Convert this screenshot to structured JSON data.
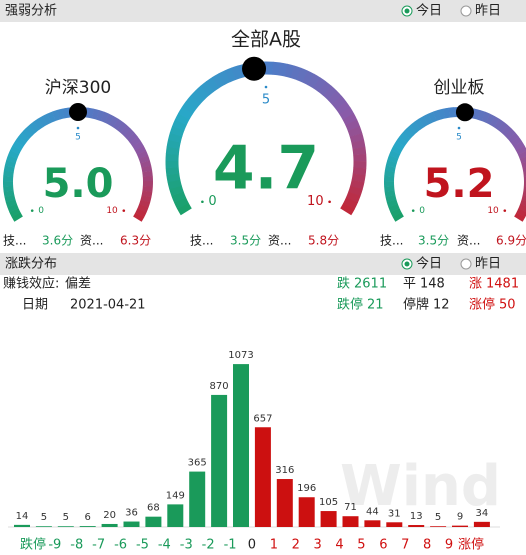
{
  "strength_panel": {
    "title": "强弱分析",
    "options": [
      "今日",
      "昨日"
    ],
    "gauges": [
      {
        "title": "沪深300",
        "value": 5,
        "value_label": "5.0",
        "color": "#1a9a5a",
        "scale": [
          0,
          5,
          10
        ],
        "tech_label": "技...",
        "tech_score": "3.6分",
        "fund_label": "资...",
        "fund_score": "6.3分"
      },
      {
        "title": "全部A股",
        "value": 4.7,
        "color": "#1a9a5a",
        "scale": [
          0,
          5,
          10
        ],
        "tech_label": "技...",
        "tech_score": "3.5分",
        "fund_label": "资...",
        "fund_score": "5.8分"
      },
      {
        "title": "创业板",
        "value": 5.2,
        "color": "#c0141e",
        "scale": [
          0,
          5,
          10
        ],
        "tech_label": "技...",
        "tech_score": "3.5分",
        "fund_label": "资...",
        "fund_score": "6.9分"
      }
    ]
  },
  "distribution_panel": {
    "title": "涨跌分布",
    "options": [
      "今日",
      "昨日"
    ],
    "effect_label": "赚钱效应:",
    "effect_value": "偏差",
    "date_label": "日期",
    "date": "2021-04-21",
    "stats": [
      {
        "label": "跌",
        "value": 2611,
        "color": "#1a9a5a"
      },
      {
        "label": "平",
        "value": 148,
        "color": "#222222"
      },
      {
        "label": "涨",
        "value": 1481,
        "color": "#d01010"
      },
      {
        "label": "跌停",
        "value": 21,
        "color": "#1a9a5a"
      },
      {
        "label": "停牌",
        "value": 12,
        "color": "#222222"
      },
      {
        "label": "涨停",
        "value": 50,
        "color": "#d01010"
      }
    ],
    "watermark": "Wind"
  },
  "chart_data": {
    "type": "bar",
    "values": [
      14,
      5,
      5,
      6,
      20,
      36,
      68,
      149,
      365,
      870,
      1073,
      657,
      316,
      196,
      105,
      71,
      44,
      31,
      13,
      5,
      9,
      34
    ],
    "colors": [
      "#1a9a5a",
      "#1a9a5a",
      "#1a9a5a",
      "#1a9a5a",
      "#1a9a5a",
      "#1a9a5a",
      "#1a9a5a",
      "#1a9a5a",
      "#1a9a5a",
      "#1a9a5a",
      "#1a9a5a",
      "#cc1010",
      "#cc1010",
      "#cc1010",
      "#cc1010",
      "#cc1010",
      "#cc1010",
      "#cc1010",
      "#cc1010",
      "#cc1010",
      "#cc1010",
      "#cc1010"
    ],
    "tick_labels": [
      "跌停",
      "-9",
      "-8",
      "-7",
      "-6",
      "-5",
      "-4",
      "-3",
      "-2",
      "-1",
      "0",
      "1",
      "2",
      "3",
      "4",
      "5",
      "6",
      "7",
      "8",
      "9",
      "涨停"
    ],
    "ylim": [
      0,
      1100
    ]
  }
}
